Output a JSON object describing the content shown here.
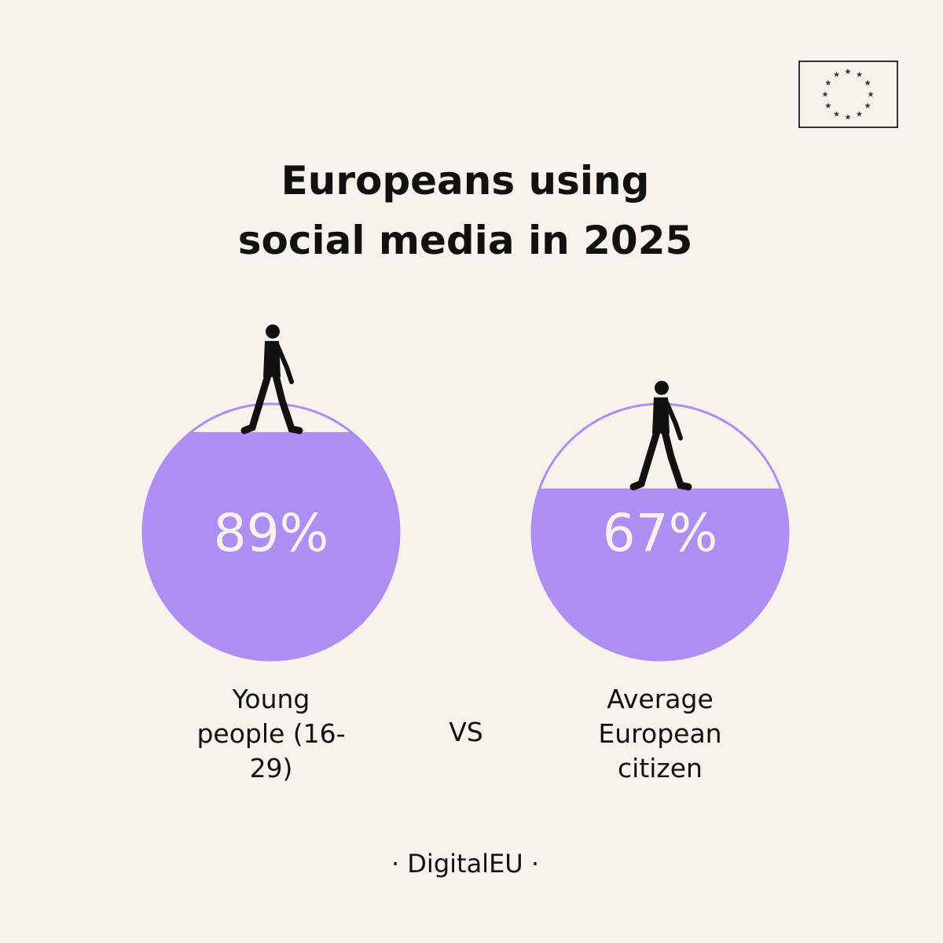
{
  "chart_data": {
    "type": "fill-circle",
    "title": "Europeans using social media in 2025",
    "categories": [
      "Young people (16-29)",
      "Average European citizen"
    ],
    "values": [
      89,
      67
    ],
    "value_labels": [
      "89%",
      "67%"
    ],
    "ylim": [
      0,
      100
    ],
    "color": "#ae8ef3",
    "separator": "VS",
    "footer": "· DigitalEU ·"
  }
}
